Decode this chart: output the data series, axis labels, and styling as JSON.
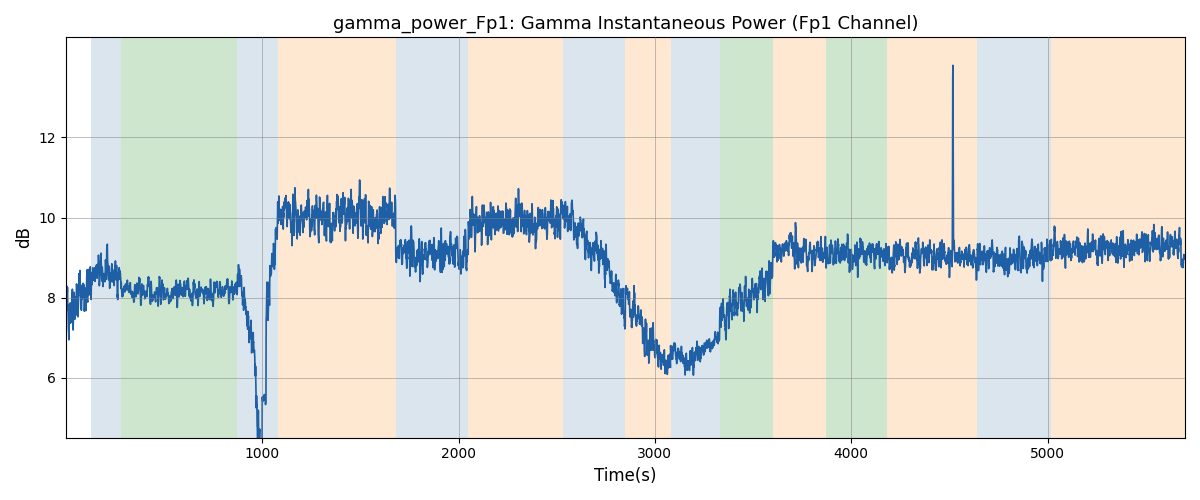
{
  "title": "gamma_power_Fp1: Gamma Instantaneous Power (Fp1 Channel)",
  "xlabel": "Time(s)",
  "ylabel": "dB",
  "xlim": [
    0,
    5700
  ],
  "ylim": [
    4.5,
    14.5
  ],
  "yticks": [
    6,
    8,
    10,
    12
  ],
  "xticks": [
    1000,
    2000,
    3000,
    4000,
    5000
  ],
  "grid": true,
  "bg_regions": [
    {
      "xmin": 130,
      "xmax": 280,
      "color": "#AEC6D8",
      "alpha": 0.45
    },
    {
      "xmin": 280,
      "xmax": 870,
      "color": "#90C990",
      "alpha": 0.45
    },
    {
      "xmin": 870,
      "xmax": 1080,
      "color": "#AEC6D8",
      "alpha": 0.45
    },
    {
      "xmin": 1080,
      "xmax": 1680,
      "color": "#FFCC99",
      "alpha": 0.45
    },
    {
      "xmin": 1680,
      "xmax": 2050,
      "color": "#AEC6D8",
      "alpha": 0.45
    },
    {
      "xmin": 2050,
      "xmax": 2530,
      "color": "#FFCC99",
      "alpha": 0.45
    },
    {
      "xmin": 2530,
      "xmax": 2850,
      "color": "#AEC6D8",
      "alpha": 0.45
    },
    {
      "xmin": 2850,
      "xmax": 3080,
      "color": "#FFCC99",
      "alpha": 0.45
    },
    {
      "xmin": 3080,
      "xmax": 3330,
      "color": "#AEC6D8",
      "alpha": 0.45
    },
    {
      "xmin": 3330,
      "xmax": 3600,
      "color": "#90C990",
      "alpha": 0.45
    },
    {
      "xmin": 3600,
      "xmax": 3870,
      "color": "#FFCC99",
      "alpha": 0.45
    },
    {
      "xmin": 3870,
      "xmax": 4180,
      "color": "#90C990",
      "alpha": 0.45
    },
    {
      "xmin": 4180,
      "xmax": 4640,
      "color": "#FFCC99",
      "alpha": 0.45
    },
    {
      "xmin": 4640,
      "xmax": 5020,
      "color": "#AEC6D8",
      "alpha": 0.45
    },
    {
      "xmin": 5020,
      "xmax": 5330,
      "color": "#FFCC99",
      "alpha": 0.45
    },
    {
      "xmin": 5330,
      "xmax": 5700,
      "color": "#FFCC99",
      "alpha": 0.45
    }
  ],
  "line_color": "#1f5fa6",
  "line_width": 1.2,
  "figsize": [
    12.0,
    5.0
  ],
  "dpi": 100,
  "seed": 42
}
